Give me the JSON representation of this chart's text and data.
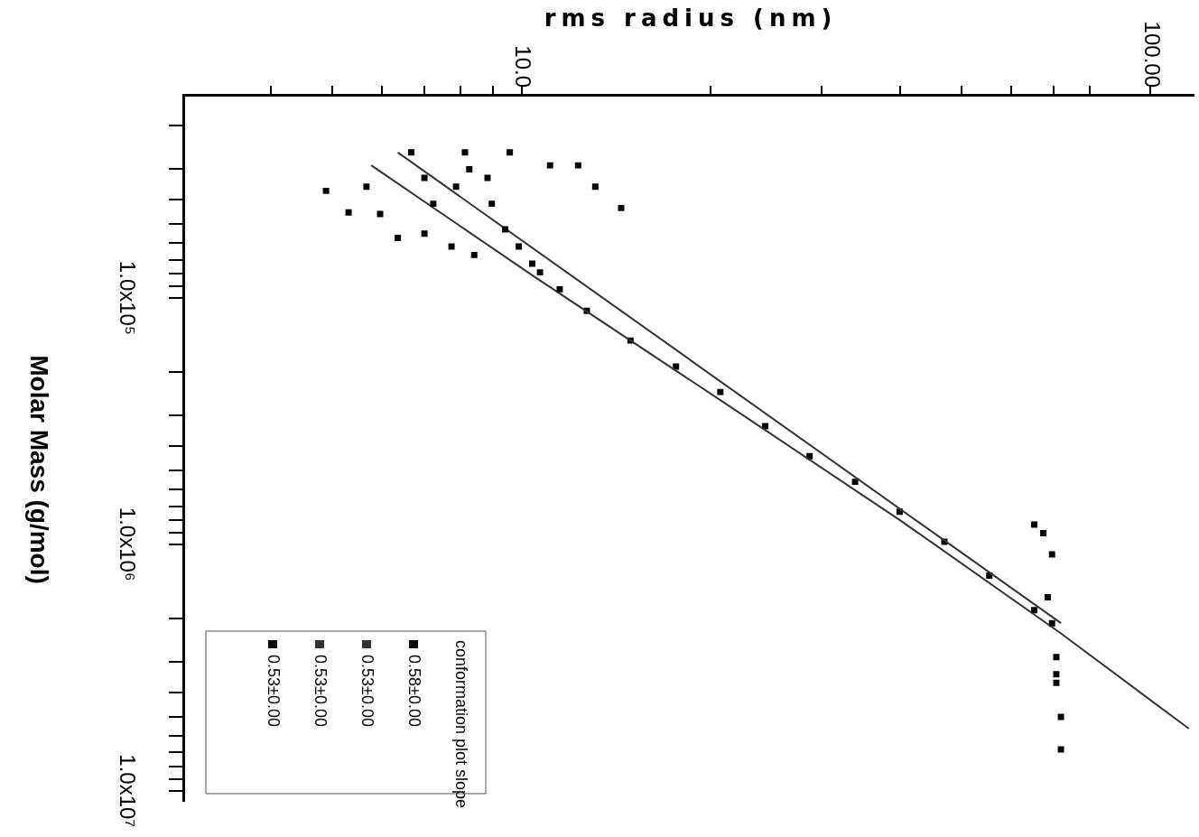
{
  "chart_data": {
    "type": "scatter",
    "xlabel": "rms radius (nm)",
    "ylabel": "Molar Mass (g/mol)",
    "legend_title": "conformation plot slope",
    "legend": "bottom left",
    "marker": "square",
    "log": "xy",
    "xlim": [
      2.9,
      117
    ],
    "ylim": [
      11000000,
      15000
    ],
    "xticks": [
      {
        "value": 4,
        "label": null
      },
      {
        "value": 5,
        "label": null
      },
      {
        "value": 6,
        "label": null
      },
      {
        "value": 7,
        "label": null
      },
      {
        "value": 8,
        "label": null
      },
      {
        "value": 9,
        "label": null
      },
      {
        "value": 10,
        "label": "10.0"
      },
      {
        "value": 20,
        "label": null
      },
      {
        "value": 30,
        "label": null
      },
      {
        "value": 40,
        "label": null
      },
      {
        "value": 50,
        "label": null
      },
      {
        "value": 60,
        "label": null
      },
      {
        "value": 70,
        "label": null
      },
      {
        "value": 80,
        "label": null
      },
      {
        "value": 100,
        "label": "100.00"
      }
    ],
    "yticks": [
      {
        "value": 20000,
        "label": null
      },
      {
        "value": 30000,
        "label": null
      },
      {
        "value": 40000,
        "label": null
      },
      {
        "value": 50000,
        "label": null
      },
      {
        "value": 60000,
        "label": null
      },
      {
        "value": 70000,
        "label": null
      },
      {
        "value": 80000,
        "label": null
      },
      {
        "value": 90000,
        "label": null
      },
      {
        "value": 100000,
        "label": "1.0x10⁵"
      },
      {
        "value": 200000,
        "label": null
      },
      {
        "value": 300000,
        "label": null
      },
      {
        "value": 400000,
        "label": null
      },
      {
        "value": 500000,
        "label": null
      },
      {
        "value": 600000,
        "label": null
      },
      {
        "value": 700000,
        "label": null
      },
      {
        "value": 800000,
        "label": null
      },
      {
        "value": 900000,
        "label": null
      },
      {
        "value": 1000000,
        "label": "1.0x10⁶"
      },
      {
        "value": 2000000,
        "label": null
      },
      {
        "value": 3000000,
        "label": null
      },
      {
        "value": 4000000,
        "label": null
      },
      {
        "value": 5000000,
        "label": null
      },
      {
        "value": 6000000,
        "label": null
      },
      {
        "value": 7000000,
        "label": null
      },
      {
        "value": 8000000,
        "label": null
      },
      {
        "value": 9000000,
        "label": null
      },
      {
        "value": 10000000,
        "label": "1.0x10⁷"
      }
    ],
    "series": [
      {
        "name": "0.58±0.00",
        "type": "scatter",
        "color": "#000000",
        "x": [
          6.68,
          8.13,
          9.58,
          8.26,
          7.01,
          7.87,
          8.97,
          4.89,
          5.67,
          5.31,
          5.96,
          6.36,
          7.01,
          7.74,
          8.41,
          9.42,
          9.9,
          11.1,
          12.3,
          13.1,
          14.4,
          7.24,
          8.83,
          10.7,
          11.5,
          65.3,
          67.5,
          69.7,
          68.6,
          69.7,
          70.8,
          70.8,
          72.0,
          72.0,
          70.8
        ],
        "values": [
          25700,
          25700,
          25700,
          30100,
          32600,
          35400,
          41500,
          36800,
          35400,
          45000,
          45700,
          57100,
          54900,
          61900,
          67000,
          52700,
          61900,
          29000,
          29000,
          35400,
          43200,
          41500,
          32600,
          78800,
          92300,
          832000,
          902000,
          1100000,
          1640000,
          2090000,
          2870000,
          3650000,
          5020000,
          6800000,
          3370000
        ]
      },
      {
        "name": "0.53±0.00",
        "type": "line",
        "marker": "none",
        "color": "#333333",
        "x": [
          6.36,
          72.0
        ],
        "values": [
          25700,
          2090000
        ]
      },
      {
        "name": "0.53±0.00",
        "type": "line",
        "marker": "none",
        "color": "#333333",
        "x": [
          5.77,
          10.4,
          20.7,
          40.0,
          72.0,
          115
        ],
        "values": [
          29000,
          81000,
          260000,
          800000,
          2300000,
          5600000
        ]
      },
      {
        "name": "0.53±0.00",
        "type": "scatter",
        "color": "#000000",
        "x": [
          10.4,
          12.7,
          14.9,
          17.6,
          20.7,
          24.4,
          28.7,
          33.9,
          39.9,
          47.0,
          55.4,
          65.3
        ],
        "values": [
          72600,
          113000,
          149000,
          190000,
          241000,
          332000,
          439000,
          558000,
          738000,
          977000,
          1340000,
          1850000
        ]
      }
    ]
  }
}
